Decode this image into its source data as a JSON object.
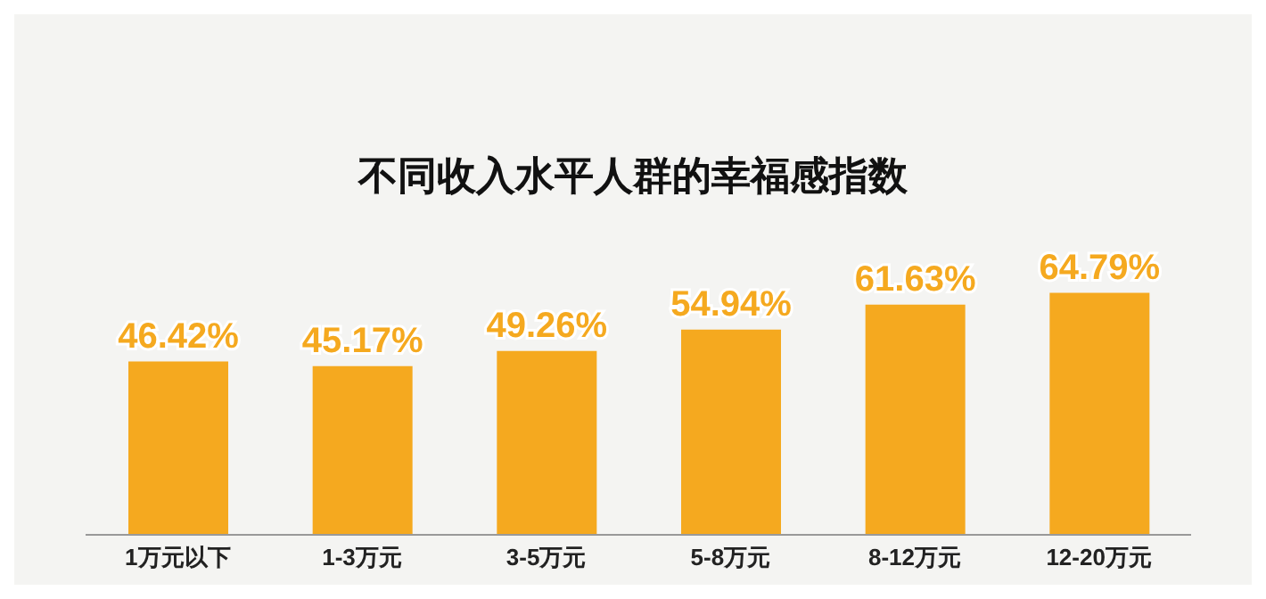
{
  "chart_data": {
    "type": "bar",
    "title": "不同收入水平人群的幸福感指数",
    "categories": [
      "1万元以下",
      "1-3万元",
      "3-5万元",
      "5-8万元",
      "8-12万元",
      "12-20万元"
    ],
    "values": [
      46.42,
      45.17,
      49.26,
      54.94,
      61.63,
      64.79
    ],
    "color": "#f5a91f",
    "data_labels": true,
    "value_labels": [
      "46.42%",
      "45.17%",
      "49.26%",
      "54.94%",
      "61.63%",
      "64.79%"
    ]
  }
}
